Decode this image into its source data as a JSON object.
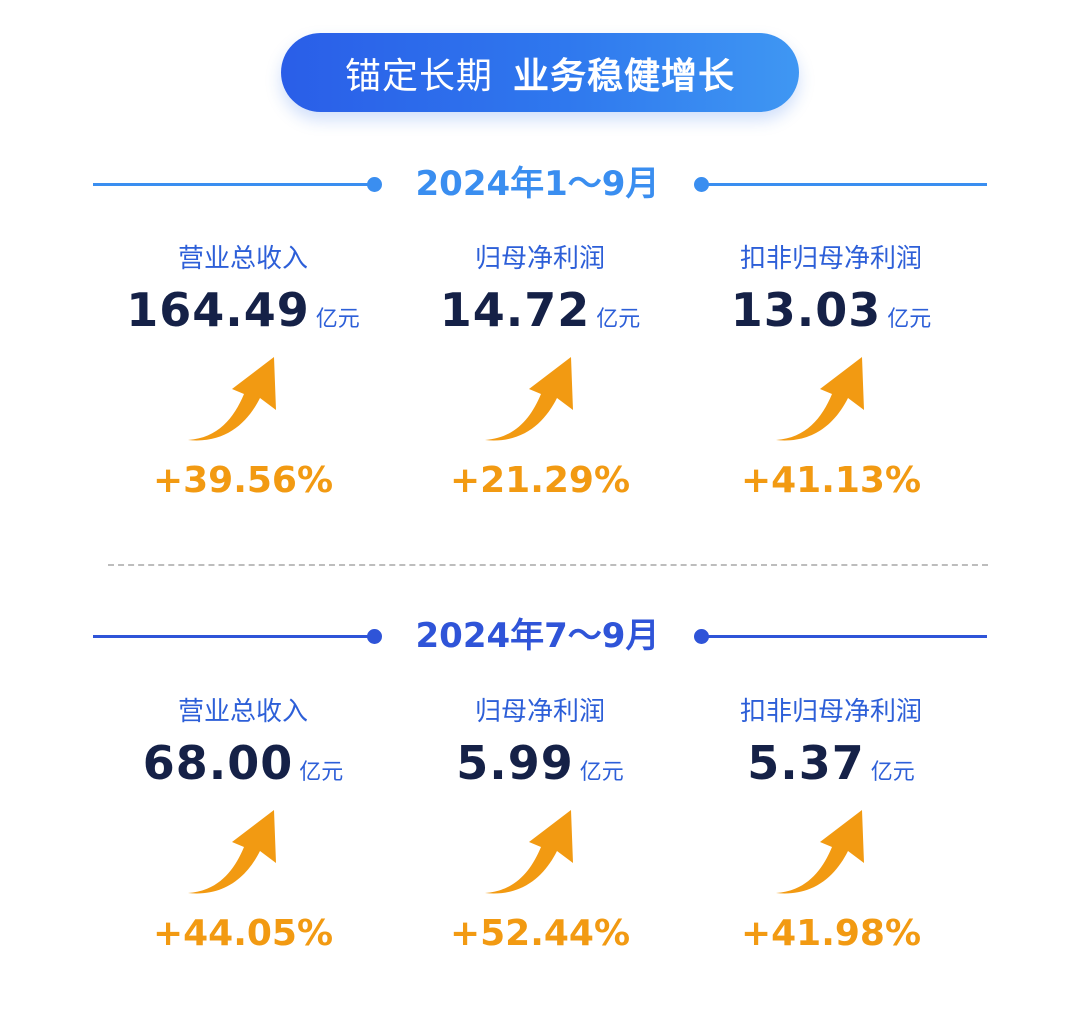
{
  "header": {
    "title_part1": "锚定长期",
    "title_part2": "业务稳健增长"
  },
  "colors": {
    "pill": "#2f78ee",
    "navy": "#152147",
    "blue": "#2d5fd8",
    "orange": "#f29a12"
  },
  "arrow_icon": "up-trend-arrow-icon",
  "periods": [
    {
      "label": "2024年1～9月",
      "metrics": [
        {
          "label": "营业总收入",
          "value": "164.49",
          "unit": "亿元",
          "change": "+39.56%"
        },
        {
          "label": "归母净利润",
          "value": "14.72",
          "unit": "亿元",
          "change": "+21.29%"
        },
        {
          "label": "扣非归母净利润",
          "value": "13.03",
          "unit": "亿元",
          "change": "+41.13%"
        }
      ]
    },
    {
      "label": "2024年7～9月",
      "metrics": [
        {
          "label": "营业总收入",
          "value": "68.00",
          "unit": "亿元",
          "change": "+44.05%"
        },
        {
          "label": "归母净利润",
          "value": "5.99",
          "unit": "亿元",
          "change": "+52.44%"
        },
        {
          "label": "扣非归母净利润",
          "value": "5.37",
          "unit": "亿元",
          "change": "+41.98%"
        }
      ]
    }
  ]
}
